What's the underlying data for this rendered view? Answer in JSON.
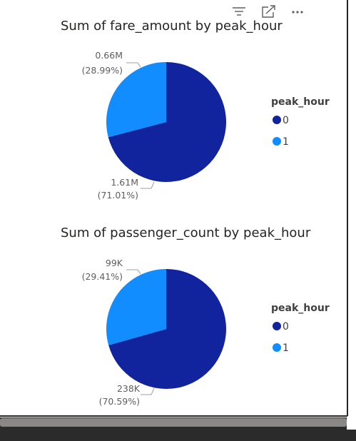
{
  "toolbar": {
    "filter_icon": "filter-icon",
    "focus_icon": "focus-mode-icon",
    "more_icon": "more-options-icon"
  },
  "colors": {
    "series0": "#12239e",
    "series1": "#118dff",
    "frame_border": "#252423",
    "scrollbar": "#8a8886",
    "bottom_bar": "#2b2b2b"
  },
  "chart_data": [
    {
      "type": "pie",
      "title": "Sum of fare_amount by peak_hour",
      "categories": [
        "0",
        "1"
      ],
      "values": [
        1.61,
        0.66
      ],
      "value_unit": "M",
      "labels": [
        {
          "category": "0",
          "value": "1.61M",
          "percent": "(71.01%)"
        },
        {
          "category": "1",
          "value": "0.66M",
          "percent": "(28.99%)"
        }
      ],
      "percents": [
        71.01,
        28.99
      ],
      "legend": {
        "title": "peak_hour",
        "items": [
          "0",
          "1"
        ],
        "position": "right"
      }
    },
    {
      "type": "pie",
      "title": "Sum of passenger_count by peak_hour",
      "categories": [
        "0",
        "1"
      ],
      "values": [
        238,
        99
      ],
      "value_unit": "K",
      "labels": [
        {
          "category": "0",
          "value": "238K",
          "percent": "(70.59%)"
        },
        {
          "category": "1",
          "value": "99K",
          "percent": "(29.41%)"
        }
      ],
      "percents": [
        70.59,
        29.41
      ],
      "legend": {
        "title": "peak_hour",
        "items": [
          "0",
          "1"
        ],
        "position": "right"
      }
    }
  ]
}
